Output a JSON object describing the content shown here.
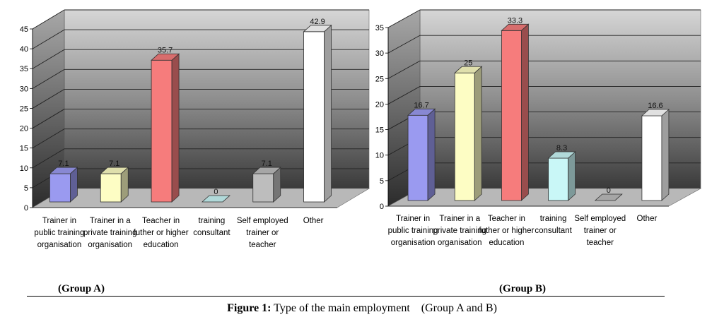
{
  "chart_data": [
    {
      "type": "bar",
      "categories": [
        [
          "Trainer in",
          "public training",
          "organisation"
        ],
        [
          "Trainer in a",
          "private training",
          "organisation"
        ],
        [
          "Teacher in",
          "futher or higher",
          "education"
        ],
        [
          "training",
          "consultant"
        ],
        [
          "Self employed",
          "trainer or",
          "teacher"
        ],
        [
          "Other"
        ]
      ],
      "values": [
        7.1,
        7.1,
        35.7,
        0,
        7.1,
        42.9
      ],
      "value_labels": [
        "7.1",
        "7.1",
        "35.7",
        "0",
        "7.1",
        "42.9"
      ],
      "colors": [
        "#9a9af0",
        "#fdfdc4",
        "#f67c7c",
        "#c9f7f7",
        "#bdbdbd",
        "#ffffff"
      ],
      "ylim": [
        0,
        45
      ],
      "yticks": [
        0,
        5,
        10,
        15,
        20,
        25,
        30,
        35,
        40,
        45
      ],
      "grid": true,
      "style": "3d"
    },
    {
      "type": "bar",
      "categories": [
        [
          "Trainer in",
          "public training",
          "organisation"
        ],
        [
          "Trainer in a",
          "private training",
          "organisation"
        ],
        [
          "Teacher in",
          "futher or higher",
          "education"
        ],
        [
          "training",
          "consultant"
        ],
        [
          "Self employed",
          "trainer or",
          "teacher"
        ],
        [
          "Other"
        ]
      ],
      "values": [
        16.7,
        25,
        33.3,
        8.3,
        0,
        16.6
      ],
      "value_labels": [
        "16.7",
        "25",
        "33.3",
        "8.3",
        "0",
        "16.6"
      ],
      "colors": [
        "#9a9af0",
        "#fdfdc4",
        "#f67c7c",
        "#c9f7f7",
        "#bdbdbd",
        "#ffffff"
      ],
      "ylim": [
        0,
        35
      ],
      "yticks": [
        0,
        5,
        10,
        15,
        20,
        25,
        30,
        35
      ],
      "grid": true,
      "style": "3d"
    }
  ],
  "labels": {
    "group_a": "(Group A)",
    "group_b": "(Group B)",
    "caption_bold": "Figure 1:",
    "caption_rest": " Type of the main employment    (Group A and B)"
  }
}
